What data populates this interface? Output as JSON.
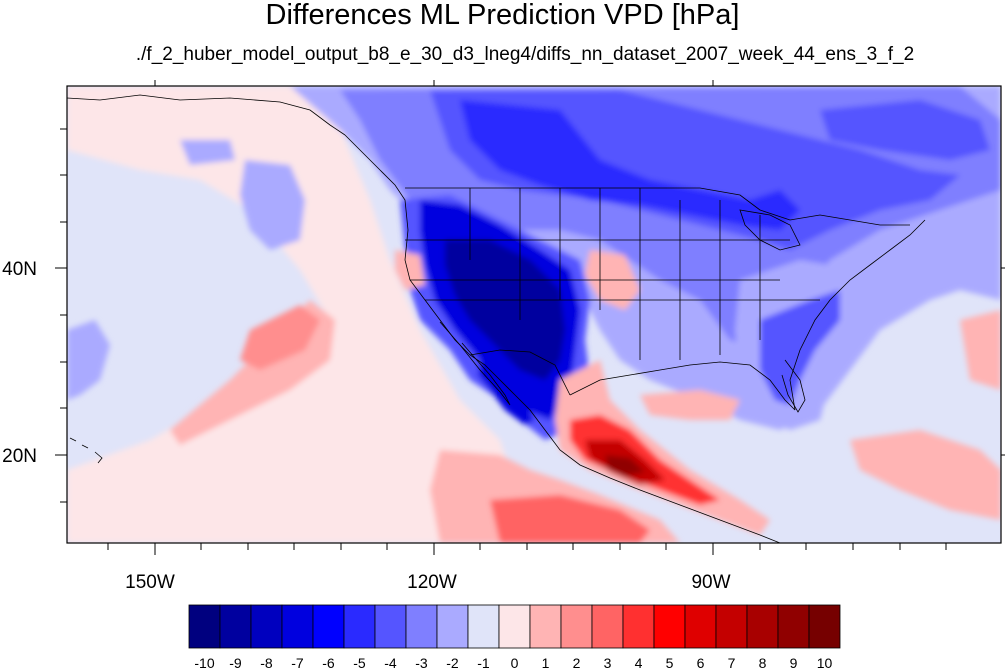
{
  "title": "Differences ML Prediction VPD [hPa]",
  "subtitle": "./f_2_huber_model_output_b8_e_30_d3_lneg4/diffs_nn_dataset_2007_week_44_ens_3_f_2",
  "map": {
    "lat_labels": [
      "40N",
      "20N"
    ],
    "lon_labels": [
      "150W",
      "120W",
      "90W"
    ]
  },
  "colorbar": {
    "labels": [
      "-10",
      "-9",
      "-8",
      "-7",
      "-6",
      "-5",
      "-4",
      "-3",
      "-2",
      "-1",
      "0",
      "1",
      "2",
      "3",
      "4",
      "5",
      "6",
      "7",
      "8",
      "9",
      "10"
    ],
    "colors": [
      "#00007f",
      "#00009f",
      "#0000bf",
      "#0000df",
      "#0000ff",
      "#2a2aff",
      "#5555ff",
      "#7f7fff",
      "#aaaaff",
      "#e0e4f9",
      "#fde6e8",
      "#ffb4b4",
      "#ff8e8e",
      "#ff6464",
      "#ff3030",
      "#ff0000",
      "#df0000",
      "#c40000",
      "#a80000",
      "#900000",
      "#760000"
    ],
    "background_color": "#e0e4f9"
  }
}
